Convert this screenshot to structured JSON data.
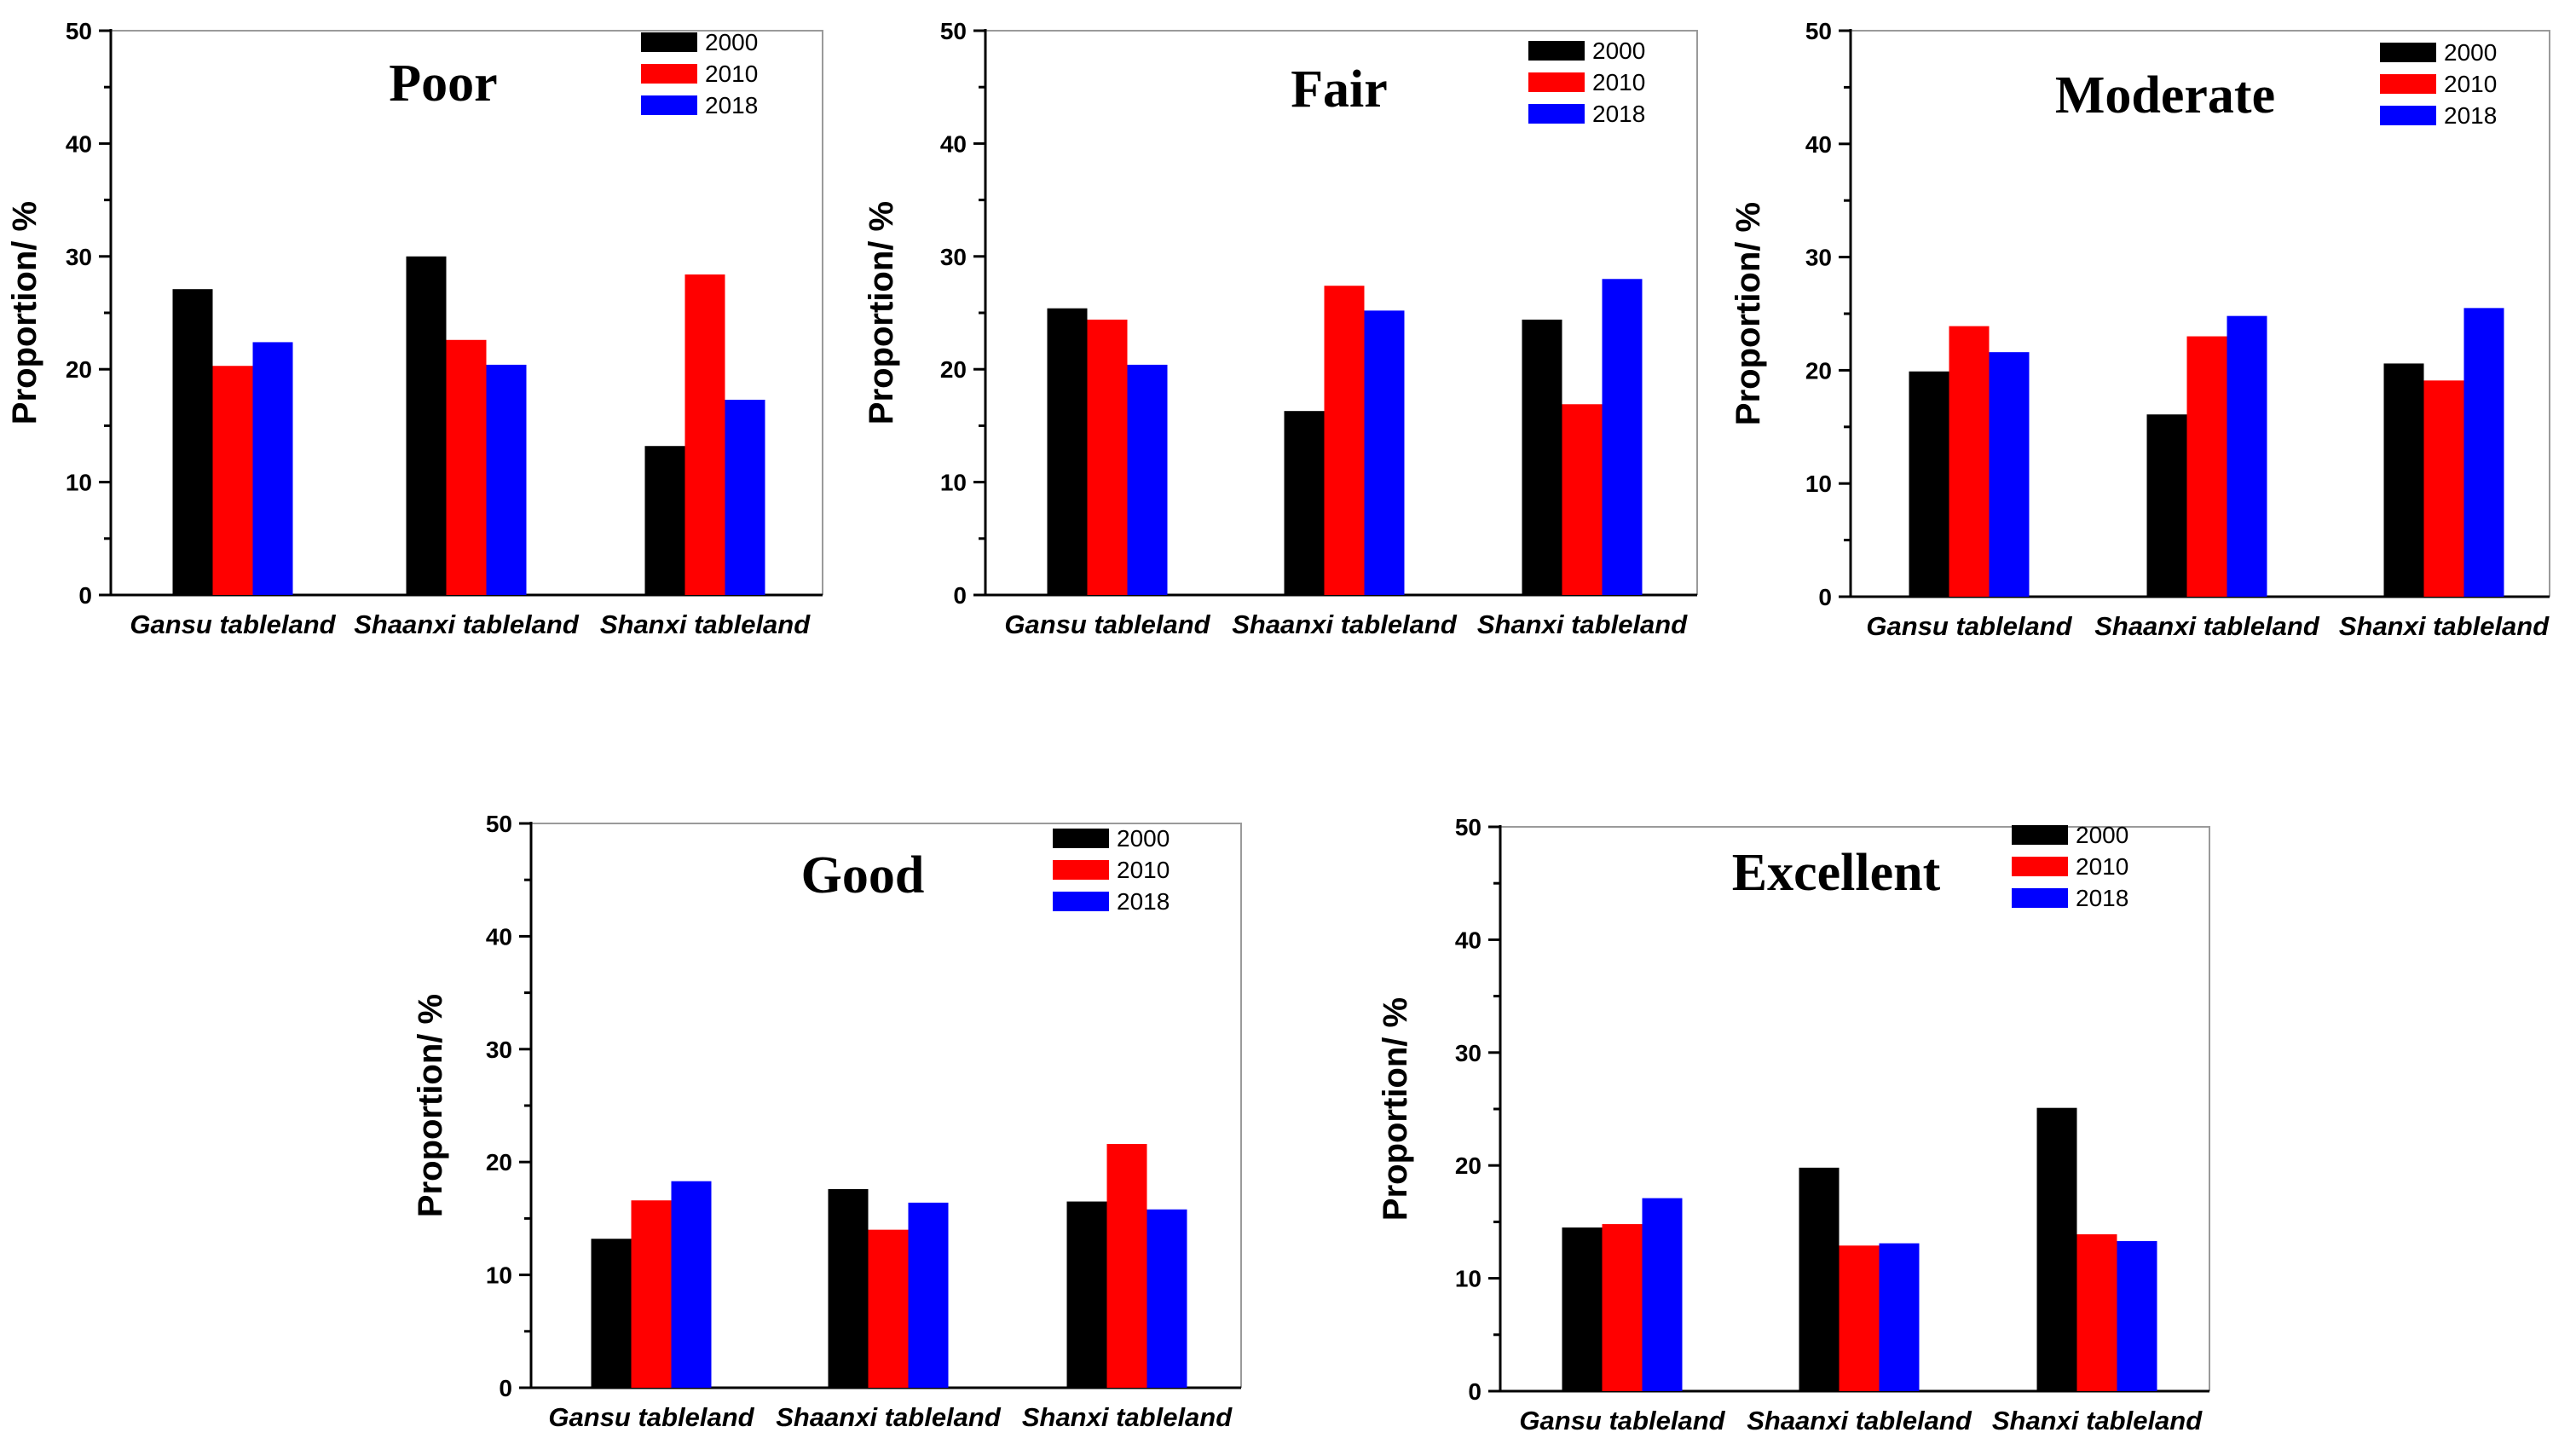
{
  "chart_data": [
    {
      "type": "bar",
      "title": "Poor",
      "ylabel": "Proportion/ %",
      "xlabel": "",
      "ylim": [
        0,
        50
      ],
      "yticks": [
        0,
        10,
        20,
        30,
        40,
        50
      ],
      "categories": [
        "Gansu tableland",
        "Shaanxi tableland",
        "Shanxi tableland"
      ],
      "series": [
        {
          "name": "2000",
          "color": "#000000",
          "values": [
            27.1,
            30.0,
            13.2
          ]
        },
        {
          "name": "2010",
          "color": "#ff0000",
          "values": [
            20.3,
            22.6,
            28.4
          ]
        },
        {
          "name": "2018",
          "color": "#0000ff",
          "values": [
            22.4,
            20.4,
            17.3
          ]
        }
      ],
      "legend": "top-right"
    },
    {
      "type": "bar",
      "title": "Fair",
      "ylabel": "Proportion/ %",
      "xlabel": "",
      "ylim": [
        0,
        50
      ],
      "yticks": [
        0,
        10,
        20,
        30,
        40,
        50
      ],
      "categories": [
        "Gansu tableland",
        "Shaanxi tableland",
        "Shanxi tableland"
      ],
      "series": [
        {
          "name": "2000",
          "color": "#000000",
          "values": [
            25.4,
            16.3,
            24.4
          ]
        },
        {
          "name": "2010",
          "color": "#ff0000",
          "values": [
            24.4,
            27.4,
            16.9
          ]
        },
        {
          "name": "2018",
          "color": "#0000ff",
          "values": [
            20.4,
            25.2,
            28.0
          ]
        }
      ],
      "legend": "top-right"
    },
    {
      "type": "bar",
      "title": "Moderate",
      "ylabel": "Proportion/ %",
      "xlabel": "",
      "ylim": [
        0,
        50
      ],
      "yticks": [
        0,
        10,
        20,
        30,
        40,
        50
      ],
      "categories": [
        "Gansu tableland",
        "Shaanxi tableland",
        "Shanxi tableland"
      ],
      "series": [
        {
          "name": "2000",
          "color": "#000000",
          "values": [
            19.9,
            16.1,
            20.6
          ]
        },
        {
          "name": "2010",
          "color": "#ff0000",
          "values": [
            23.9,
            23.0,
            19.1
          ]
        },
        {
          "name": "2018",
          "color": "#0000ff",
          "values": [
            21.6,
            24.8,
            25.5
          ]
        }
      ],
      "legend": "top-right"
    },
    {
      "type": "bar",
      "title": "Good",
      "ylabel": "Proportion/ %",
      "xlabel": "",
      "ylim": [
        0,
        50
      ],
      "yticks": [
        0,
        10,
        20,
        30,
        40,
        50
      ],
      "categories": [
        "Gansu tableland",
        "Shaanxi tableland",
        "Shanxi tableland"
      ],
      "series": [
        {
          "name": "2000",
          "color": "#000000",
          "values": [
            13.2,
            17.6,
            16.5
          ]
        },
        {
          "name": "2010",
          "color": "#ff0000",
          "values": [
            16.6,
            14.0,
            21.6
          ]
        },
        {
          "name": "2018",
          "color": "#0000ff",
          "values": [
            18.3,
            16.4,
            15.8
          ]
        }
      ],
      "legend": "top-right"
    },
    {
      "type": "bar",
      "title": "Excellent",
      "ylabel": "Proportion/ %",
      "xlabel": "",
      "ylim": [
        0,
        50
      ],
      "yticks": [
        0,
        10,
        20,
        30,
        40,
        50
      ],
      "categories": [
        "Gansu tableland",
        "Shaanxi tableland",
        "Shanxi tableland"
      ],
      "series": [
        {
          "name": "2000",
          "color": "#000000",
          "values": [
            14.5,
            19.8,
            25.1
          ]
        },
        {
          "name": "2010",
          "color": "#ff0000",
          "values": [
            14.8,
            12.9,
            13.9
          ]
        },
        {
          "name": "2018",
          "color": "#0000ff",
          "values": [
            17.1,
            13.1,
            13.3
          ]
        }
      ],
      "legend": "top-right"
    }
  ]
}
